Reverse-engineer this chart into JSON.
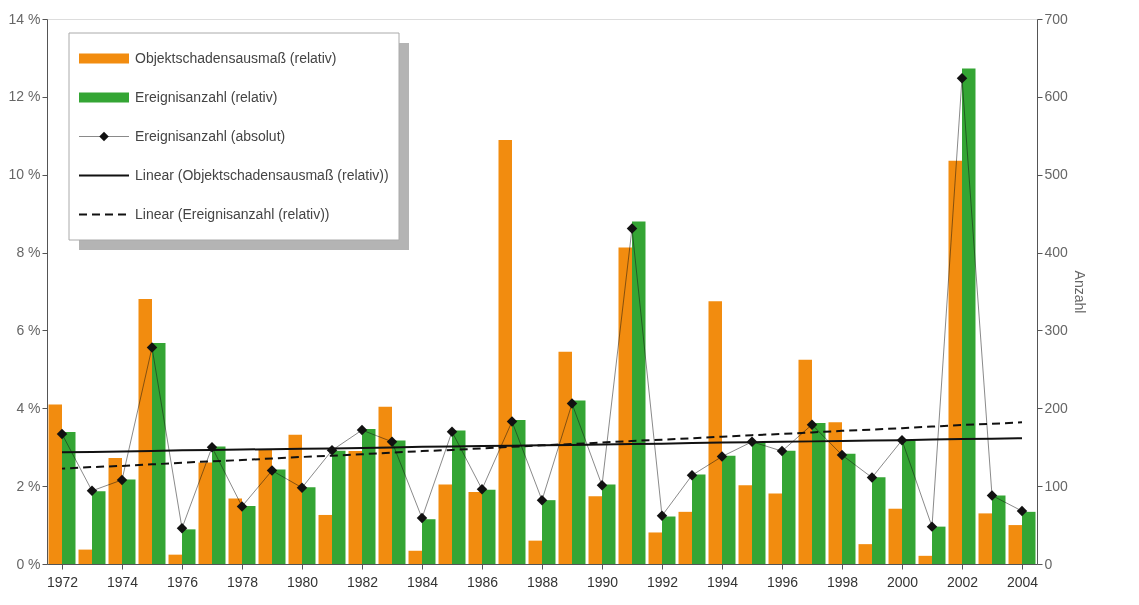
{
  "chart_data": {
    "type": "bar",
    "x": [
      1972,
      1973,
      1974,
      1975,
      1976,
      1977,
      1978,
      1979,
      1980,
      1981,
      1982,
      1983,
      1984,
      1985,
      1986,
      1987,
      1988,
      1989,
      1990,
      1991,
      1992,
      1993,
      1994,
      1995,
      1996,
      1997,
      1998,
      1999,
      2000,
      2001,
      2002,
      2003,
      2004
    ],
    "xlim": [
      1971.5,
      2004.5
    ],
    "xticks": [
      1972,
      1974,
      1976,
      1978,
      1980,
      1982,
      1984,
      1986,
      1988,
      1990,
      1992,
      1994,
      1996,
      1998,
      2000,
      2002,
      2004
    ],
    "ylim": [
      0,
      14
    ],
    "yticks": [
      {
        "value": 0,
        "label": "0 %"
      },
      {
        "value": 2,
        "label": "2 %"
      },
      {
        "value": 4,
        "label": "4 %"
      },
      {
        "value": 6,
        "label": "6 %"
      },
      {
        "value": 8,
        "label": "8 %"
      },
      {
        "value": 10,
        "label": "10 %"
      },
      {
        "value": 12,
        "label": "12 %"
      },
      {
        "value": 14,
        "label": "14 %"
      }
    ],
    "y2lim": [
      0,
      700
    ],
    "y2ticks": [
      0,
      100,
      200,
      300,
      400,
      500,
      600,
      700
    ],
    "y2label": "Anzahl",
    "legend": "top left",
    "grid": false,
    "series": [
      {
        "name": "Objektschadensausmaß (relativ)",
        "color": "#f28c0f",
        "values": [
          4.1,
          0.37,
          2.72,
          6.81,
          0.24,
          2.61,
          1.68,
          2.94,
          3.32,
          1.26,
          2.9,
          4.04,
          0.34,
          2.04,
          1.85,
          10.89,
          0.6,
          5.45,
          1.74,
          8.13,
          0.81,
          1.34,
          6.75,
          2.02,
          1.81,
          5.25,
          3.64,
          0.51,
          1.42,
          0.21,
          10.36,
          1.3,
          1.0
        ]
      },
      {
        "name": "Ereignisanzahl (relativ)",
        "color": "#34a534",
        "values": [
          3.39,
          1.87,
          2.17,
          5.68,
          0.89,
          3.02,
          1.49,
          2.43,
          1.97,
          2.91,
          3.47,
          3.17,
          1.15,
          3.43,
          1.91,
          3.7,
          1.64,
          4.2,
          2.04,
          8.8,
          1.22,
          2.3,
          2.78,
          3.12,
          2.91,
          3.62,
          2.83,
          2.23,
          3.19,
          0.96,
          12.73,
          1.76,
          1.34
        ]
      },
      {
        "name": "Ereignisanzahl (absolut)",
        "type": "line",
        "axis": "y2",
        "marker": "diamond",
        "color": "#111111",
        "values": [
          167,
          94,
          108,
          278,
          46,
          150,
          74,
          120,
          98,
          146,
          172,
          157,
          59,
          170,
          96,
          183,
          82,
          206,
          101,
          431,
          62,
          114,
          138,
          157,
          145,
          179,
          140,
          111,
          159,
          48,
          624,
          88,
          68
        ]
      },
      {
        "name": "Linear (Objektschadensausmaß (relativ))",
        "type": "line",
        "color": "#111111",
        "line_style": "solid",
        "values": [
          2.87,
          2.88,
          2.89,
          2.9,
          2.92,
          2.93,
          2.94,
          2.95,
          2.96,
          2.97,
          2.98,
          2.99,
          3.01,
          3.02,
          3.03,
          3.04,
          3.05,
          3.06,
          3.07,
          3.08,
          3.09,
          3.11,
          3.12,
          3.13,
          3.14,
          3.15,
          3.16,
          3.17,
          3.18,
          3.2,
          3.21,
          3.22,
          3.23
        ]
      },
      {
        "name": "Linear (Ereignisanzahl (relativ))",
        "type": "line",
        "color": "#111111",
        "line_style": "dashed",
        "values": [
          2.45,
          2.49,
          2.52,
          2.56,
          2.6,
          2.64,
          2.67,
          2.71,
          2.75,
          2.78,
          2.82,
          2.86,
          2.9,
          2.93,
          2.97,
          3.01,
          3.05,
          3.08,
          3.12,
          3.16,
          3.19,
          3.23,
          3.27,
          3.31,
          3.34,
          3.38,
          3.42,
          3.45,
          3.49,
          3.53,
          3.57,
          3.6,
          3.64
        ]
      }
    ]
  }
}
